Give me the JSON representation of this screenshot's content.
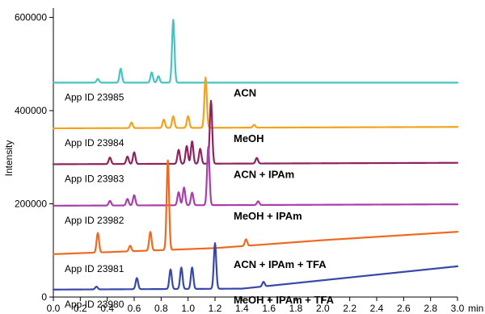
{
  "chart_data": {
    "type": "line",
    "title": "",
    "xlabel": "",
    "x_unit": "min",
    "ylabel": "Intensity",
    "xlim": [
      0.0,
      3.0
    ],
    "ylim": [
      0,
      620000
    ],
    "x_ticks": [
      "0.0",
      "0.2",
      "0.4",
      "0.6",
      "0.8",
      "1.0",
      "1.2",
      "1.4",
      "1.6",
      "1.8",
      "2.0",
      "2.2",
      "2.4",
      "2.6",
      "2.8",
      "3.0"
    ],
    "y_ticks": [
      "0",
      "200000",
      "400000",
      "600000"
    ],
    "grid": false,
    "legend": "none",
    "series": [
      {
        "name": "ACN",
        "id_label": "App ID 23985",
        "color": "#48c2c2",
        "baseline": [
          [
            0.0,
            460000
          ],
          [
            3.0,
            460000
          ]
        ],
        "peaks": [
          [
            0.33,
            8000
          ],
          [
            0.5,
            30000
          ],
          [
            0.73,
            22000
          ],
          [
            0.78,
            14000
          ],
          [
            0.89,
            135000
          ]
        ]
      },
      {
        "name": "MeOH",
        "id_label": "App ID 23984",
        "color": "#f5a21b",
        "baseline": [
          [
            0.0,
            362000
          ],
          [
            3.0,
            365000
          ]
        ],
        "peaks": [
          [
            0.58,
            12000
          ],
          [
            0.82,
            18000
          ],
          [
            0.89,
            25000
          ],
          [
            1.0,
            25000
          ],
          [
            1.13,
            108000
          ],
          [
            1.49,
            6000
          ]
        ]
      },
      {
        "name": "ACN + IPAm",
        "id_label": "App ID 23983",
        "color": "#8f2360",
        "baseline": [
          [
            0.0,
            285000
          ],
          [
            3.0,
            288000
          ]
        ],
        "peaks": [
          [
            0.42,
            14000
          ],
          [
            0.55,
            16000
          ],
          [
            0.6,
            25000
          ],
          [
            0.93,
            30000
          ],
          [
            0.99,
            38000
          ],
          [
            1.03,
            48000
          ],
          [
            1.09,
            32000
          ],
          [
            1.17,
            135000
          ],
          [
            1.51,
            12000
          ]
        ]
      },
      {
        "name": "MeOH + IPAm",
        "id_label": "App ID 23982",
        "color": "#aa3eab",
        "baseline": [
          [
            0.0,
            196000
          ],
          [
            3.0,
            199000
          ]
        ],
        "peaks": [
          [
            0.42,
            10000
          ],
          [
            0.55,
            14000
          ],
          [
            0.6,
            22000
          ],
          [
            0.93,
            28000
          ],
          [
            0.97,
            38000
          ],
          [
            1.03,
            27000
          ],
          [
            1.15,
            125000
          ],
          [
            1.52,
            8000
          ]
        ]
      },
      {
        "name": "ACN + IPAm + TFA",
        "id_label": "App ID 23981",
        "color": "#ef6a20",
        "baseline": [
          [
            0.0,
            92000
          ],
          [
            1.2,
            105000
          ],
          [
            2.0,
            122000
          ],
          [
            3.0,
            140000
          ]
        ],
        "peaks": [
          [
            0.33,
            42000
          ],
          [
            0.57,
            12000
          ],
          [
            0.72,
            40000
          ],
          [
            0.85,
            192000
          ],
          [
            1.43,
            14000
          ]
        ]
      },
      {
        "name": "MeOH + IPAm + TFA",
        "id_label": "App ID 23980",
        "color": "#3848a8",
        "baseline": [
          [
            0.0,
            16000
          ],
          [
            1.4,
            18000
          ],
          [
            2.0,
            36000
          ],
          [
            3.0,
            66000
          ]
        ],
        "peaks": [
          [
            0.32,
            6000
          ],
          [
            0.62,
            24000
          ],
          [
            0.87,
            42000
          ],
          [
            0.95,
            46000
          ],
          [
            1.03,
            46000
          ],
          [
            1.2,
            98000
          ],
          [
            1.56,
            10000
          ]
        ]
      }
    ]
  }
}
